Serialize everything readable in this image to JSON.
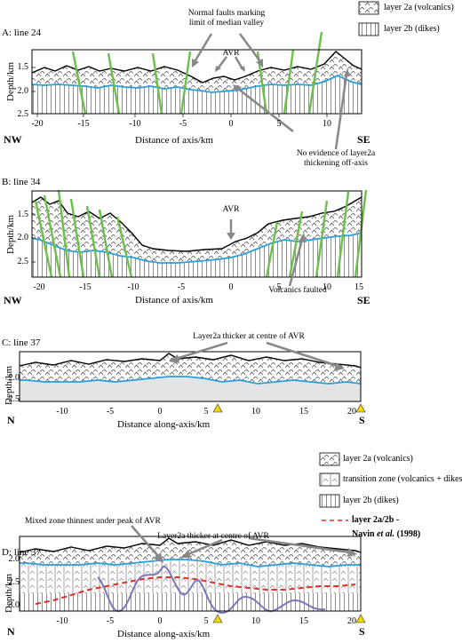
{
  "legend_top": {
    "layer2a": "layer 2a (volcanics)",
    "layer2b": "layer 2b (dikes)"
  },
  "legend_bottom": {
    "layer2a": "layer 2a (volcanics)",
    "transition": "transition zone (volcanics + dikes)",
    "layer2b": "layer 2b (dikes)",
    "navin_line1": "layer 2a/2b -",
    "navin_author": "Navin",
    "navin_etal": "et al.",
    "navin_year": "(1998)"
  },
  "panels": {
    "a": {
      "title": "A: line 24",
      "ylabel": "Depth/km",
      "yticks": [
        "1.5",
        "2.0",
        "2.5"
      ],
      "xticks": [
        "-20",
        "-15",
        "-10",
        "-5",
        "0",
        "5",
        "10"
      ],
      "xlabel": "Distance of axis/km",
      "left_dir": "NW",
      "right_dir": "SE",
      "ann_faults": "Normal faults marking\nlimit of median valley",
      "ann_avr": "AVR",
      "ann_thickening": "No evidence of layer2a\nthickening off-axis"
    },
    "b": {
      "title": "B: line 34",
      "ylabel": "Depth/km",
      "yticks": [
        "1.5",
        "2.0",
        "2.5"
      ],
      "xticks": [
        "-20",
        "-15",
        "-10",
        "-5",
        "0",
        "5",
        "10",
        "15"
      ],
      "xlabel": "Distance of axis/km",
      "left_dir": "NW",
      "right_dir": "SE",
      "ann_avr": "AVR",
      "ann_faulted": "Volcanics faulted"
    },
    "c": {
      "title": "C: line 37",
      "ylabel": "Depth/km",
      "yticks": [
        "2.0",
        "2.5"
      ],
      "xticks": [
        "-10",
        "-5",
        "0",
        "5",
        "10",
        "15",
        "20"
      ],
      "xlabel": "Distance along-axis/km",
      "left_dir": "N",
      "right_dir": "S",
      "ann_thicker": "Layer2a thicker at centre of AVR"
    },
    "d": {
      "title": "D: line 37",
      "ylabel": "Depth/km",
      "yticks": [
        "2.0",
        "2.5",
        "3.0"
      ],
      "xticks": [
        "-10",
        "-5",
        "0",
        "5",
        "10",
        "15",
        "20"
      ],
      "xlabel": "Distance along-axis/km",
      "left_dir": "N",
      "right_dir": "S",
      "ann_mixed": "Mixed zone thinnest under peak of AVR",
      "ann_thicker": "Layer2a thicker at centre of AVR"
    }
  },
  "colors": {
    "fault": "#6cc04a",
    "basement": "#2aa0d8",
    "navin": "#e0302a",
    "transition_curve": "#7a78b8",
    "marker": "#f2d600",
    "shade": "#e3e4e6"
  }
}
